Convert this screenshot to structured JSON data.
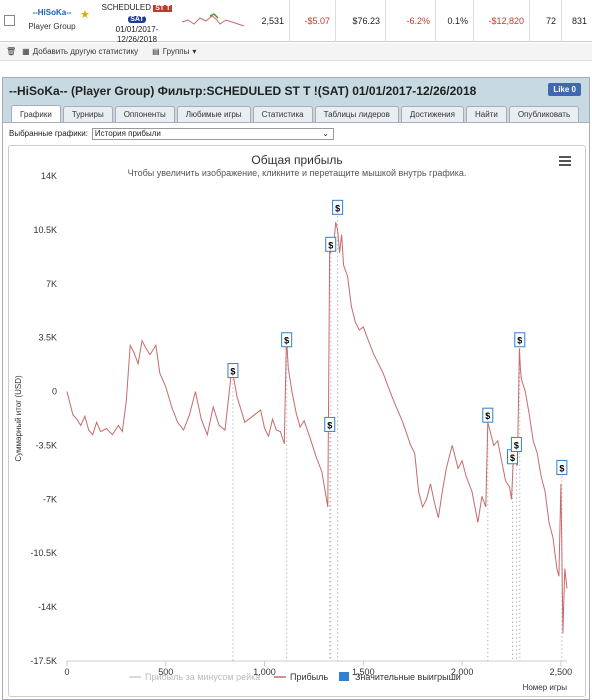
{
  "row": {
    "player_name": "--HiSoKa--",
    "player_group": "Player Group",
    "schedule_label": "SCHEDULED",
    "badge_st": "ST T",
    "badge_sat": "SAT",
    "date_range": "01/01/2017-\n12/26/2018",
    "games": "2,531",
    "avg_profit": "-$5.07",
    "avg_stake": "$76.23",
    "roi": "-6.2%",
    "itm": "0.1%",
    "total_profit": "-$12,820",
    "v1": "72",
    "v2": "831"
  },
  "toolbar": {
    "add_stats": "Добавить другую статистику",
    "groups": "Группы"
  },
  "panel": {
    "title": "--HiSoKa-- (Player Group) Фильтр:SCHEDULED ST T !(SAT) 01/01/2017-12/26/2018",
    "like": "Like 0",
    "tabs": [
      "Графики",
      "Турниры",
      "Оппоненты",
      "Любимые игры",
      "Статистика",
      "Таблицы лидеров",
      "Достижения",
      "Найти",
      "Опубликовать"
    ],
    "select_label": "Выбранные графики:",
    "select_value": "История прибыли"
  },
  "chart_data": {
    "type": "line",
    "title": "Общая прибыль",
    "subtitle": "Чтобы увеличить изображение, кликните и перетащите мышкой внутрь графика.",
    "xlabel": "Номер игры",
    "ylabel": "Суммарный итог (USD)",
    "xlim": [
      0,
      2531
    ],
    "ylim": [
      -17500,
      14000
    ],
    "x_ticks": [
      0,
      500,
      1000,
      1500,
      2000,
      2500
    ],
    "x_tick_labels": [
      "0",
      "500",
      "1,000",
      "1,500",
      "2,000",
      "2,500"
    ],
    "y_ticks": [
      14000,
      10500,
      7000,
      3500,
      0,
      -3500,
      -7000,
      -10500,
      -14000,
      -17500
    ],
    "y_tick_labels": [
      "14K",
      "10.5K",
      "7K",
      "3.5K",
      "0",
      "-3.5K",
      "-7K",
      "-10.5K",
      "-14K",
      "-17.5K"
    ],
    "legend": [
      {
        "name": "Прибыль за минусом рейка",
        "color": "#cccccc"
      },
      {
        "name": "Прибыль",
        "color": "#c76a6a"
      },
      {
        "name": "Значительные выигрыши",
        "color": "#2f80d1"
      }
    ],
    "legend_position": "bottom",
    "series": [
      {
        "name": "Прибыль",
        "color": "#c76a6a",
        "x": [
          0,
          30,
          50,
          70,
          90,
          110,
          130,
          150,
          170,
          200,
          230,
          260,
          280,
          300,
          320,
          340,
          360,
          380,
          400,
          420,
          450,
          470,
          500,
          530,
          560,
          590,
          620,
          650,
          680,
          710,
          740,
          770,
          800,
          830,
          840,
          860,
          900,
          940,
          980,
          1000,
          1020,
          1040,
          1060,
          1080,
          1100,
          1110,
          1112,
          1120,
          1140,
          1160,
          1180,
          1200,
          1230,
          1260,
          1290,
          1320,
          1330,
          1335,
          1340,
          1350,
          1360,
          1370,
          1380,
          1390,
          1400,
          1420,
          1440,
          1460,
          1480,
          1500,
          1520,
          1550,
          1600,
          1650,
          1700,
          1740,
          1760,
          1780,
          1800,
          1820,
          1840,
          1860,
          1880,
          1900,
          1920,
          1950,
          1980,
          2000,
          2020,
          2050,
          2080,
          2100,
          2120,
          2130,
          2140,
          2160,
          2180,
          2200,
          2220,
          2240,
          2250,
          2260,
          2270,
          2280,
          2290,
          2295,
          2300,
          2320,
          2340,
          2360,
          2380,
          2400,
          2420,
          2440,
          2460,
          2480,
          2490,
          2500,
          2505,
          2510,
          2520,
          2531
        ],
        "values": [
          0,
          -1500,
          -1800,
          -2200,
          -1600,
          -2500,
          -2800,
          -2000,
          -2600,
          -2400,
          -2800,
          -2200,
          -2600,
          -600,
          3000,
          2500,
          1800,
          3300,
          2800,
          2400,
          3000,
          1200,
          300,
          -1000,
          -2000,
          -2500,
          -1500,
          0,
          -1800,
          -2800,
          -1000,
          -2200,
          -2500,
          1000,
          1200,
          -300,
          -2000,
          -1600,
          -1200,
          -2400,
          -2900,
          -1800,
          -2500,
          -2600,
          -3400,
          3000,
          3300,
          1500,
          -100,
          -1400,
          -2300,
          -1900,
          -3000,
          -4200,
          -5200,
          -7500,
          9500,
          9000,
          10000,
          9500,
          11000,
          10500,
          9000,
          10200,
          8200,
          7500,
          5500,
          4500,
          4000,
          4200,
          3500,
          2500,
          1200,
          -500,
          -2000,
          -3500,
          -4000,
          -6500,
          -7500,
          -7000,
          -6000,
          -7200,
          -8200,
          -6500,
          -5000,
          -3500,
          -5000,
          -4500,
          -5500,
          -6500,
          -8500,
          -6800,
          -7500,
          -2000,
          -2500,
          -3500,
          -3200,
          -4500,
          -5800,
          -6200,
          -7000,
          -4200,
          -4500,
          -4800,
          2800,
          1500,
          800,
          0,
          -1500,
          -3200,
          -4000,
          -5500,
          -6500,
          -8500,
          -9500,
          -11500,
          -12000,
          -6000,
          -10500,
          -15700,
          -11500,
          -12800
        ]
      }
    ],
    "significant_wins": [
      {
        "x": 840,
        "y": 1300
      },
      {
        "x": 1112,
        "y": 3300
      },
      {
        "x": 1330,
        "y": -2200
      },
      {
        "x": 1335,
        "y": 9500
      },
      {
        "x": 1370,
        "y": 11900
      },
      {
        "x": 2130,
        "y": -1600
      },
      {
        "x": 2255,
        "y": -4300
      },
      {
        "x": 2275,
        "y": -3500
      },
      {
        "x": 2292,
        "y": 3300
      },
      {
        "x": 2505,
        "y": -5000
      }
    ]
  }
}
